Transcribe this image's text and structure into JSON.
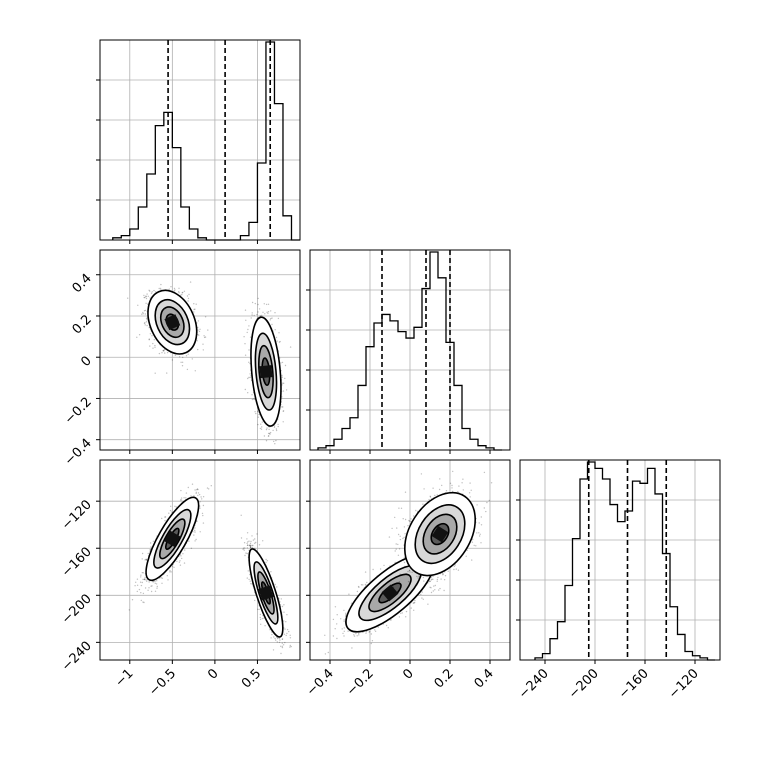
{
  "chart_data": {
    "type": "corner",
    "title": "",
    "axis_labels": [
      "",
      "",
      ""
    ],
    "hist": [
      {
        "name": "",
        "xlim": [
          -1.35,
          1.0
        ],
        "edges": [
          -1.2,
          -1.1,
          -1.0,
          -0.9,
          -0.8,
          -0.7,
          -0.6,
          -0.5,
          -0.4,
          -0.3,
          -0.2,
          -0.1,
          0.0,
          0.1,
          0.2,
          0.3,
          0.4,
          0.5,
          0.6,
          0.7,
          0.8,
          0.9,
          1.0
        ],
        "counts": [
          0.01,
          0.02,
          0.05,
          0.15,
          0.3,
          0.52,
          0.58,
          0.42,
          0.15,
          0.05,
          0.01,
          0.0,
          0.0,
          0.0,
          0.0,
          0.02,
          0.08,
          0.35,
          0.9,
          0.62,
          0.11,
          0.0
        ],
        "quantiles": [
          -0.55,
          0.12,
          0.65
        ],
        "xticks": [
          -1.0,
          -0.5,
          0.0,
          0.5
        ]
      },
      {
        "name": "",
        "xlim": [
          -0.5,
          0.5
        ],
        "edges": [
          -0.46,
          -0.42,
          -0.38,
          -0.34,
          -0.3,
          -0.26,
          -0.22,
          -0.18,
          -0.14,
          -0.1,
          -0.06,
          -0.02,
          0.02,
          0.06,
          0.1,
          0.14,
          0.18,
          0.22,
          0.26,
          0.3,
          0.34,
          0.38,
          0.42,
          0.46
        ],
        "counts": [
          0.01,
          0.02,
          0.05,
          0.1,
          0.15,
          0.3,
          0.48,
          0.59,
          0.63,
          0.6,
          0.55,
          0.52,
          0.57,
          0.75,
          0.92,
          0.8,
          0.5,
          0.3,
          0.1,
          0.05,
          0.02,
          0.01,
          0.0
        ],
        "quantiles": [
          -0.14,
          0.08,
          0.2
        ],
        "xticks": [
          -0.4,
          -0.2,
          0.0,
          0.2,
          0.4
        ]
      },
      {
        "name": "",
        "xlim": [
          -260,
          -100
        ],
        "edges": [
          -248,
          -242,
          -236,
          -230,
          -224,
          -218,
          -212,
          -206,
          -200,
          -194,
          -188,
          -182,
          -176,
          -170,
          -164,
          -158,
          -152,
          -146,
          -140,
          -134,
          -128,
          -122,
          -116,
          -110,
          -104
        ],
        "counts": [
          0.01,
          0.03,
          0.1,
          0.18,
          0.35,
          0.57,
          0.85,
          0.93,
          0.9,
          0.85,
          0.73,
          0.65,
          0.7,
          0.84,
          0.83,
          0.9,
          0.78,
          0.5,
          0.25,
          0.12,
          0.04,
          0.02,
          0.01,
          0.0
        ],
        "quantiles": [
          -205,
          -174,
          -143
        ],
        "xticks": [
          -240,
          -200,
          -160,
          -120
        ]
      }
    ],
    "scatter2d": [
      {
        "xvar": 0,
        "yvar": 1,
        "xlim": [
          -1.35,
          1.0
        ],
        "ylim": [
          -0.45,
          0.52
        ],
        "yticks": [
          -0.4,
          -0.2,
          0.0,
          0.2,
          0.4
        ],
        "modes": [
          {
            "cx": -0.5,
            "cy": 0.17,
            "sx": 0.13,
            "sy": 0.07,
            "rho": -0.3,
            "n": 1600
          },
          {
            "cx": 0.6,
            "cy": -0.07,
            "sx": 0.08,
            "sy": 0.12,
            "rho": -0.3,
            "n": 1600
          }
        ]
      },
      {
        "xvar": 0,
        "yvar": 2,
        "xlim": [
          -1.35,
          1.0
        ],
        "ylim": [
          -255,
          -85
        ],
        "yticks": [
          -240,
          -200,
          -160,
          -120
        ],
        "modes": [
          {
            "cx": -0.5,
            "cy": -152,
            "sx": 0.14,
            "sy": 16,
            "rho": 0.8,
            "n": 1600
          },
          {
            "cx": 0.6,
            "cy": -198,
            "sx": 0.09,
            "sy": 17,
            "rho": -0.8,
            "n": 1600
          }
        ]
      },
      {
        "xvar": 1,
        "yvar": 2,
        "xlim": [
          -0.5,
          0.5
        ],
        "ylim": [
          -255,
          -85
        ],
        "yticks": [],
        "modes": [
          {
            "cx": -0.1,
            "cy": -198,
            "sx": 0.1,
            "sy": 15,
            "rho": 0.75,
            "n": 1600
          },
          {
            "cx": 0.15,
            "cy": -148,
            "sx": 0.08,
            "sy": 16,
            "rho": 0.35,
            "n": 1600
          }
        ]
      }
    ]
  }
}
